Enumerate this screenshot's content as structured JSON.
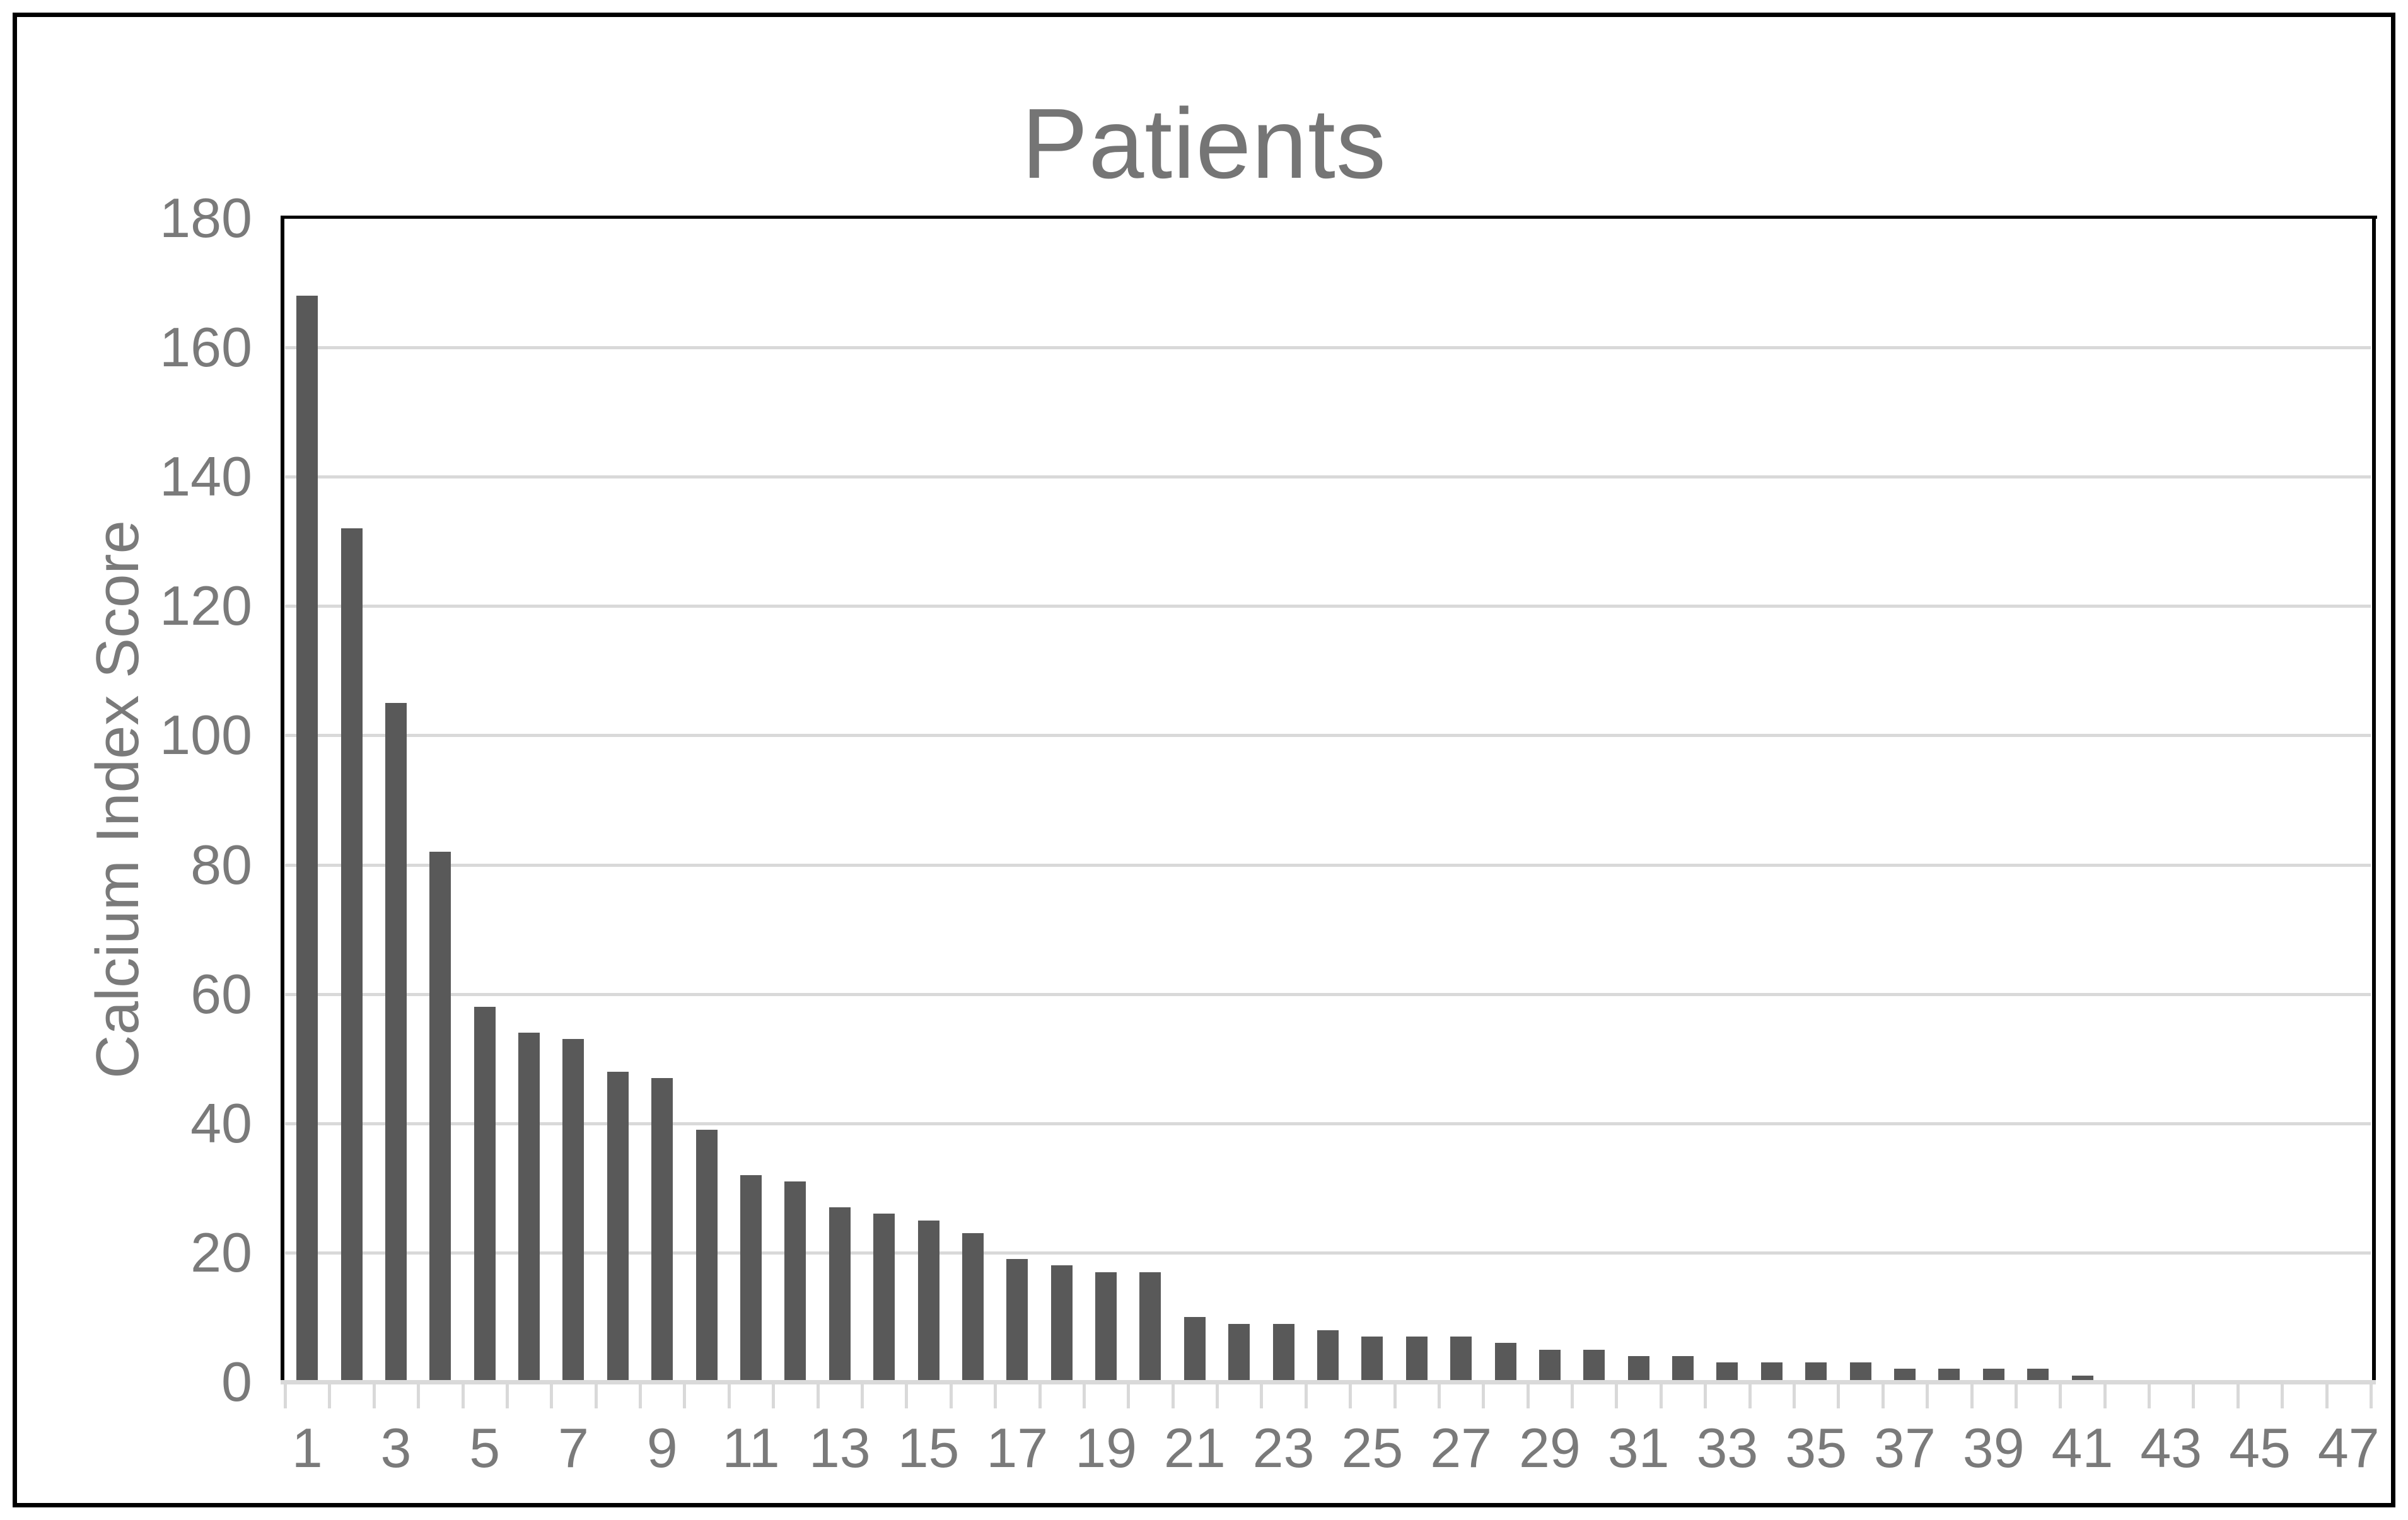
{
  "title": "Patients",
  "y_axis": {
    "title": "Calcium Index Score",
    "min": 0,
    "max": 180,
    "tick_step": 20,
    "tick_labels": [
      "0",
      "20",
      "40",
      "60",
      "80",
      "100",
      "120",
      "140",
      "160",
      "180"
    ]
  },
  "x_axis": {
    "tick_labels": [
      "1",
      "3",
      "5",
      "7",
      "9",
      "11",
      "13",
      "15",
      "17",
      "19",
      "21",
      "23",
      "25",
      "27",
      "29",
      "31",
      "33",
      "35",
      "37",
      "39",
      "41",
      "43",
      "45",
      "47"
    ]
  },
  "colors": {
    "bar": "#595959",
    "gridline": "#d9d9d9",
    "axis_light": "#d9d9d9",
    "axis_dark": "#000000",
    "labels": "#7a7a7a",
    "title": "#757575",
    "background": "#ffffff"
  },
  "chart_data": {
    "type": "bar",
    "title": "Patients",
    "xlabel": "",
    "ylabel": "Calcium Index Score",
    "ylim": [
      0,
      180
    ],
    "grid": true,
    "legend": false,
    "categories": [
      1,
      2,
      3,
      4,
      5,
      6,
      7,
      8,
      9,
      10,
      11,
      12,
      13,
      14,
      15,
      16,
      17,
      18,
      19,
      20,
      21,
      22,
      23,
      24,
      25,
      26,
      27,
      28,
      29,
      30,
      31,
      32,
      33,
      34,
      35,
      36,
      37,
      38,
      39,
      40,
      41,
      42,
      43,
      44,
      45,
      46,
      47
    ],
    "values": [
      168,
      132,
      105,
      82,
      58,
      54,
      53,
      48,
      47,
      39,
      32,
      31,
      27,
      26,
      25,
      23,
      19,
      18,
      17,
      17,
      10,
      9,
      9,
      8,
      7,
      7,
      7,
      6,
      5,
      5,
      4,
      4,
      3,
      3,
      3,
      3,
      2,
      2,
      2,
      2,
      1,
      0,
      0,
      0,
      0,
      0,
      0
    ],
    "x_labels_shown_every": 2
  }
}
